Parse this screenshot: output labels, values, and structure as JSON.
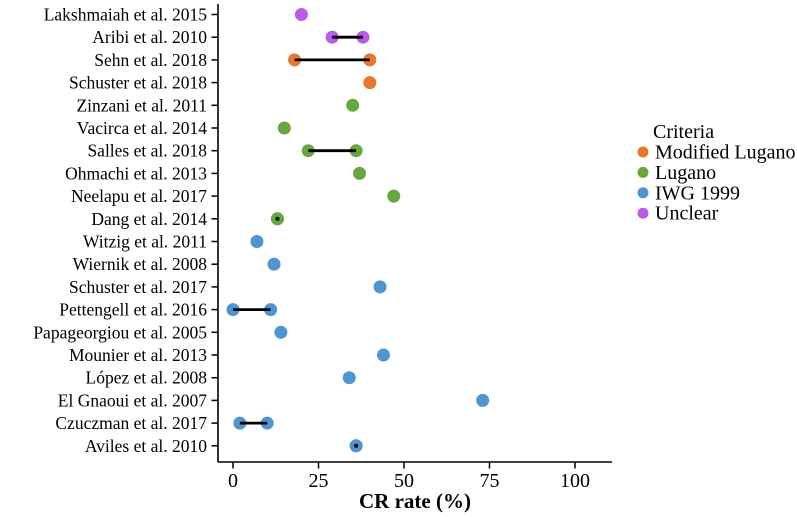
{
  "chart_data": {
    "type": "scatter",
    "subtype": "cleveland-dot-plot",
    "title": "",
    "xlabel": "CR rate (%)",
    "ylabel": "",
    "xlim": [
      -4.4,
      110.8
    ],
    "x_ticks": [
      0,
      25,
      50,
      75,
      100
    ],
    "grid": false,
    "legend": {
      "title": "Criteria",
      "position": "right",
      "entries": [
        {
          "label": "Modified Lugano",
          "color": "#E8782D"
        },
        {
          "label": "Lugano",
          "color": "#68A73E"
        },
        {
          "label": "IWG 1999",
          "color": "#4E95D1"
        },
        {
          "label": "Unclear",
          "color": "#BC5BE8"
        }
      ]
    },
    "segment_color": "#000000",
    "axis_color": "#000000",
    "rows": [
      {
        "label": "Lakshmaiah et al. 2015",
        "criteria": "Unclear",
        "values": [
          20
        ]
      },
      {
        "label": "Aribi et al. 2010",
        "criteria": "Unclear",
        "values": [
          29,
          38
        ]
      },
      {
        "label": "Sehn et al. 2018",
        "criteria": "Modified Lugano",
        "values": [
          18,
          40
        ]
      },
      {
        "label": "Schuster et al. 2018",
        "criteria": "Modified Lugano",
        "values": [
          40
        ]
      },
      {
        "label": "Zinzani et al. 2011",
        "criteria": "Lugano",
        "values": [
          35
        ]
      },
      {
        "label": "Vacirca et al. 2014",
        "criteria": "Lugano",
        "values": [
          15
        ]
      },
      {
        "label": "Salles et al. 2018",
        "criteria": "Lugano",
        "values": [
          22,
          36
        ]
      },
      {
        "label": "Ohmachi et al. 2013",
        "criteria": "Lugano",
        "values": [
          37
        ]
      },
      {
        "label": "Neelapu et al. 2017",
        "criteria": "Lugano",
        "values": [
          47
        ]
      },
      {
        "label": "Dang et al. 2014",
        "criteria": "Lugano",
        "values": [
          13,
          13
        ]
      },
      {
        "label": "Witzig et al. 2011",
        "criteria": "IWG 1999",
        "values": [
          7
        ]
      },
      {
        "label": "Wiernik et al. 2008",
        "criteria": "IWG 1999",
        "values": [
          12
        ]
      },
      {
        "label": "Schuster et al. 2017",
        "criteria": "IWG 1999",
        "values": [
          43
        ]
      },
      {
        "label": "Pettengell et al. 2016",
        "criteria": "IWG 1999",
        "values": [
          0,
          11
        ]
      },
      {
        "label": "Papageorgiou et al. 2005",
        "criteria": "IWG 1999",
        "values": [
          14
        ]
      },
      {
        "label": "Mounier et al. 2013",
        "criteria": "IWG 1999",
        "values": [
          44
        ]
      },
      {
        "label": "López et al. 2008",
        "criteria": "IWG 1999",
        "values": [
          34
        ]
      },
      {
        "label": "El Gnaoui et al. 2007",
        "criteria": "IWG 1999",
        "values": [
          73
        ]
      },
      {
        "label": "Czuczman et al. 2017",
        "criteria": "IWG 1999",
        "values": [
          2,
          10
        ]
      },
      {
        "label": "Aviles et al. 2010",
        "criteria": "IWG 1999",
        "values": [
          36,
          36
        ]
      }
    ]
  }
}
